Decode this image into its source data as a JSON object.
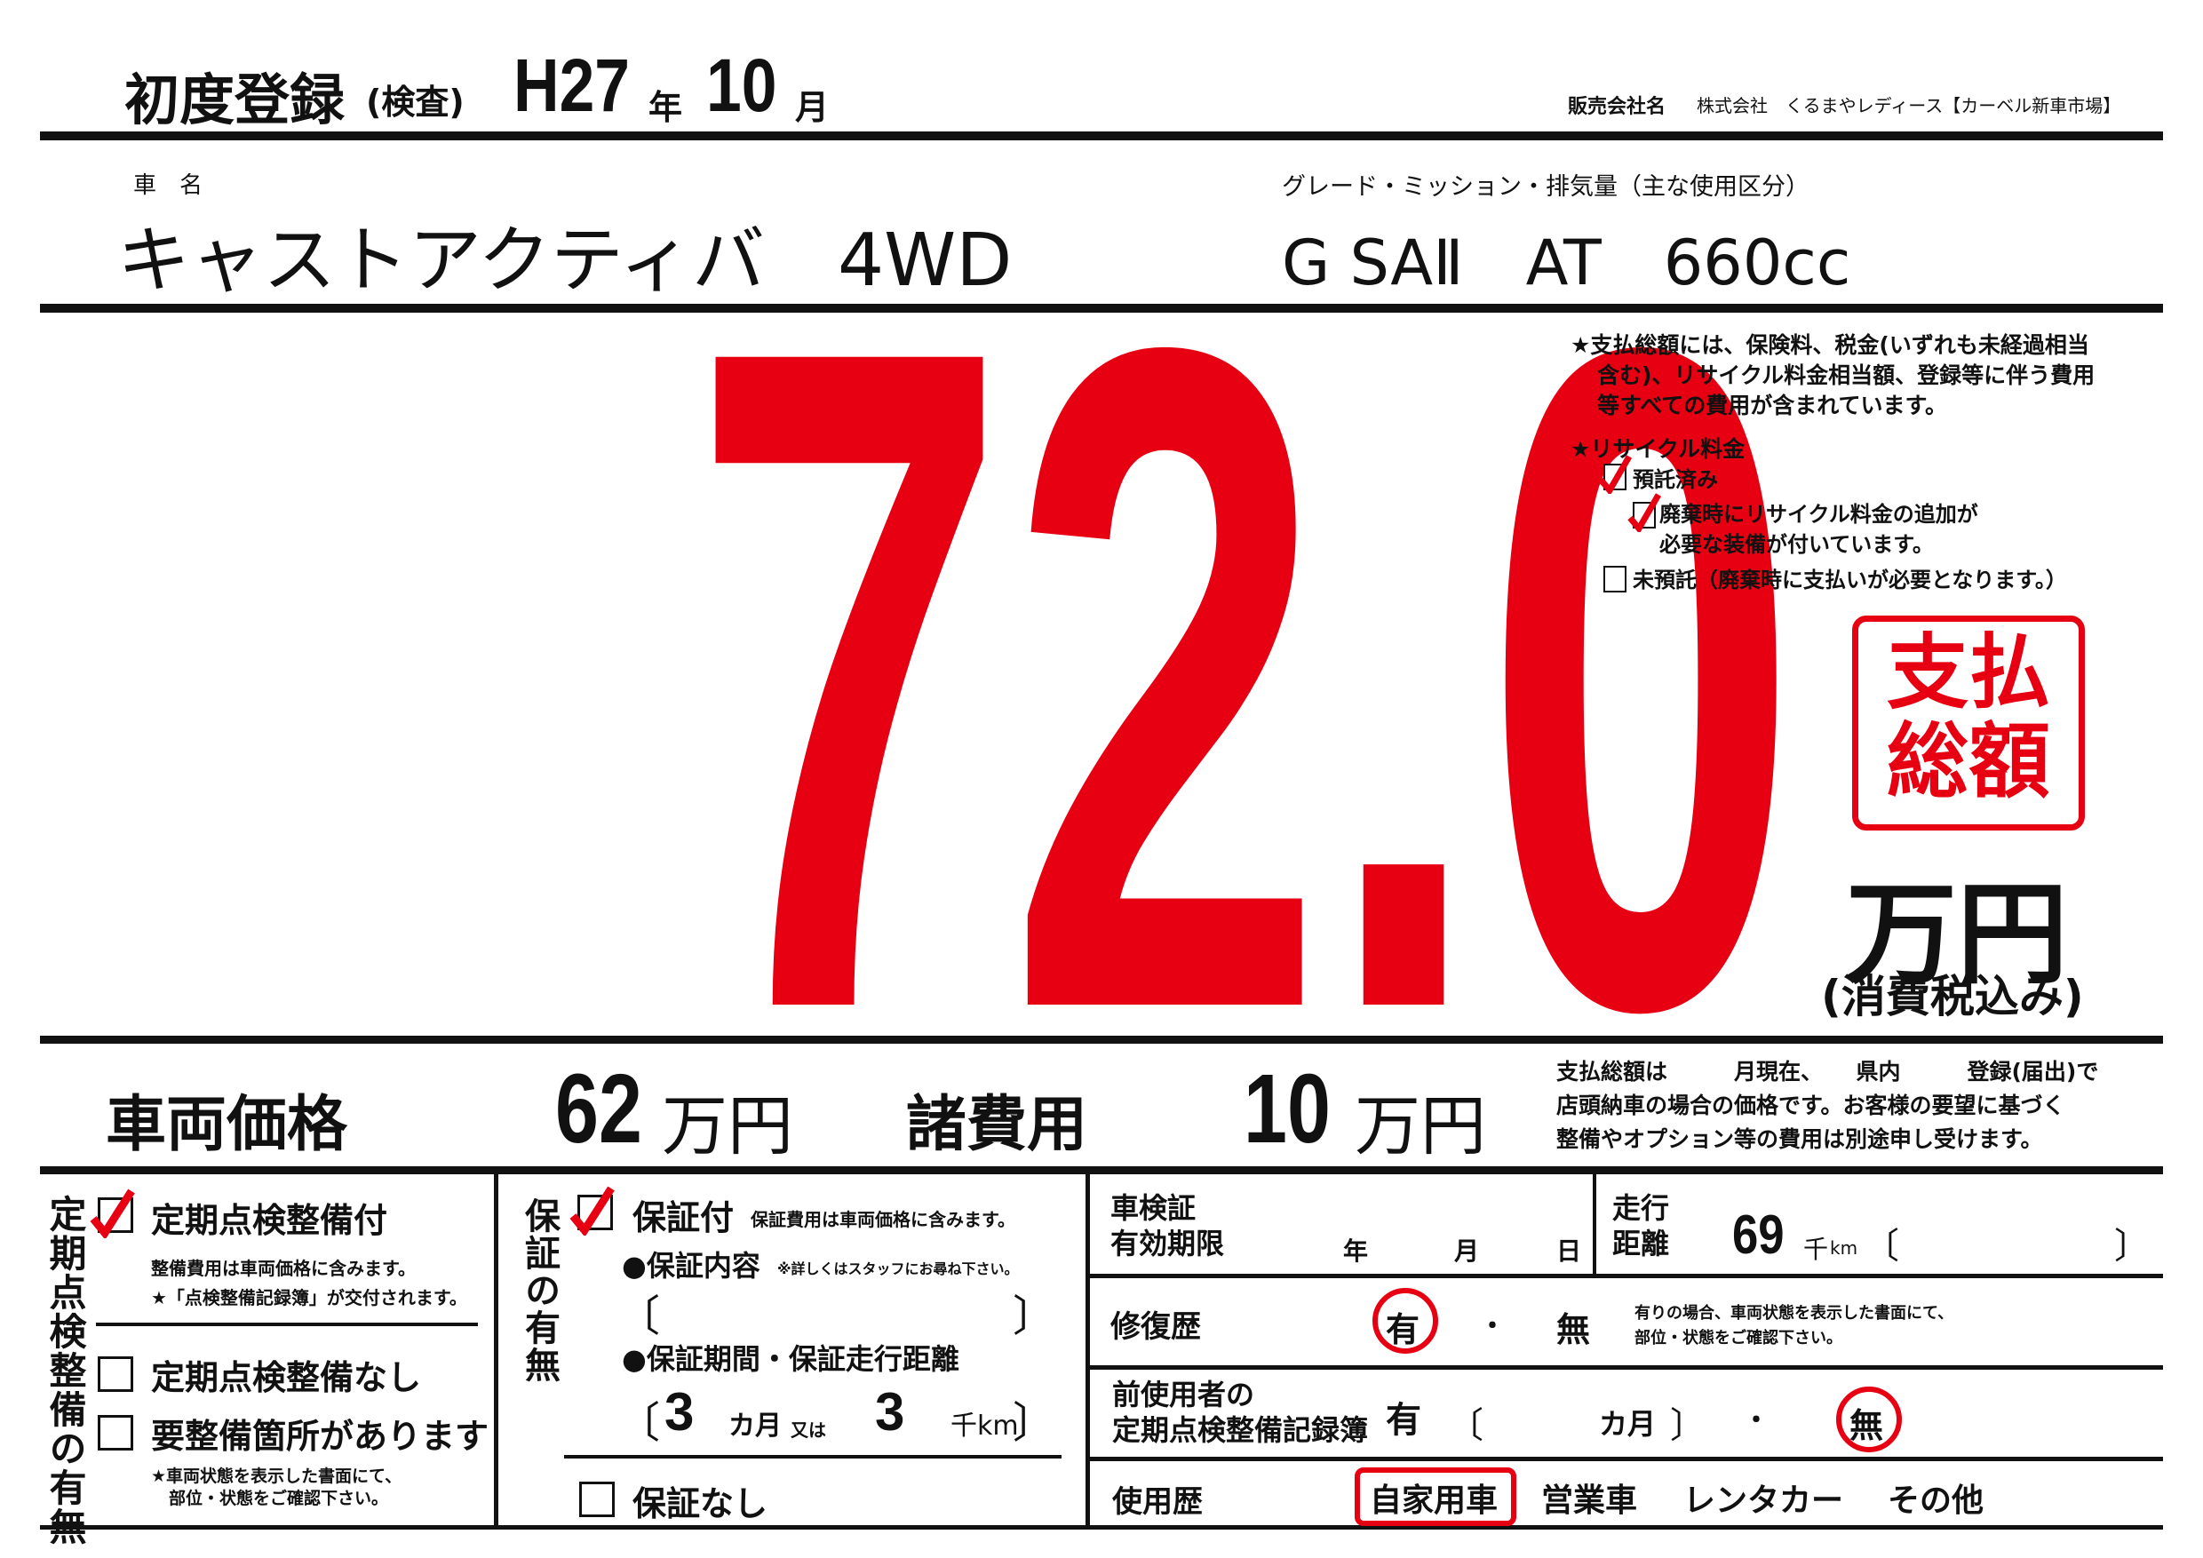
{
  "header": {
    "first_reg_label": "初度登録",
    "first_reg_sub": "(検査)",
    "era_year": "H27",
    "year_unit": "年",
    "month": "10",
    "month_unit": "月",
    "seller_label": "販売会社名",
    "seller_name": "株式会社　くるまやレディース【カーベル新車市場】"
  },
  "vehicle": {
    "name_label": "車　名",
    "name": "キャストアクティバ　4WD",
    "grade_label": "グレード・ミッション・排気量（主な使用区分）",
    "grade": "G SAⅡ　AT　660cc"
  },
  "price": {
    "total": "72.0",
    "badge_line1": "支払",
    "badge_line2": "総額",
    "unit": "万円",
    "tax_note": "(消費税込み)",
    "accent_color": "#e60012"
  },
  "notes": {
    "total_note": [
      "★支払総額には、保険料、税金(いずれも未経過相当",
      "含む)、リサイクル料金相当額、登録等に伴う費用",
      "等すべての費用が含まれています。"
    ],
    "recycle_title": "★リサイクル料金",
    "recycle_options": [
      {
        "label": "預託済み",
        "checked": true
      },
      {
        "label": "廃棄時にリサイクル料金の追加が",
        "label2": "必要な装備が付いています。",
        "checked": true
      },
      {
        "label": "未預託（廃棄時に支払いが必要となります。）",
        "checked": false
      }
    ]
  },
  "breakdown": {
    "vehicle_price_label": "車両価格",
    "vehicle_price": "62",
    "vehicle_price_unit": "万円",
    "fees_label": "諸費用",
    "fees": "10",
    "fees_unit": "万円",
    "disclaimer": [
      "支払総額は　　　月現在、　　県内　　　登録(届出)で",
      "店頭納車の場合の価格です。お客様の要望に基づく",
      "整備やオプション等の費用は別途申し受けます。"
    ]
  },
  "inspection": {
    "title": "定期点検整備の有無",
    "with": {
      "label": "定期点検整備付",
      "checked": true,
      "note1": "整備費用は車両価格に含みます。",
      "note2": "★「点検整備記録簿」が交付されます。"
    },
    "without": {
      "label": "定期点検整備なし",
      "checked": false
    },
    "needs": {
      "label": "要整備箇所があります",
      "checked": false
    },
    "needs_note1": "★車両状態を表示した書面にて、",
    "needs_note2": "部位・状態をご確認下さい。"
  },
  "warranty": {
    "title": "保証の有無",
    "with": {
      "label": "保証付",
      "checked": true,
      "note": "保証費用は車両価格に含みます。"
    },
    "content_label": "●保証内容",
    "content_note": "※詳しくはスタッフにお尋ね下さい。",
    "period_label": "●保証期間・保証走行距離",
    "months": "3",
    "months_unit": "カ月",
    "or": "又は",
    "distance": "3",
    "distance_unit": "千km",
    "without": {
      "label": "保証なし",
      "checked": false
    }
  },
  "details": {
    "shaken_label1": "車検証",
    "shaken_label2": "有効期限",
    "year": "年",
    "month": "月",
    "day": "日",
    "mileage_label1": "走行",
    "mileage_label2": "距離",
    "mileage": "69",
    "mileage_unit": "千",
    "mileage_unit2": "km",
    "repair_label": "修復歴",
    "repair_yes": "有",
    "repair_no": "無",
    "repair_selected": "有",
    "repair_note1": "有りの場合、車両状態を表示した書面にて、",
    "repair_note2": "部位・状態をご確認下さい。",
    "record_label1": "前使用者の",
    "record_label2": "定期点検整備記録簿",
    "record_yes": "有",
    "record_months_unit": "カ月",
    "record_no": "無",
    "record_selected": "無",
    "usage_label": "使用歴",
    "usage_options": [
      "自家用車",
      "営業車",
      "レンタカー",
      "その他"
    ],
    "usage_selected": "自家用車"
  }
}
